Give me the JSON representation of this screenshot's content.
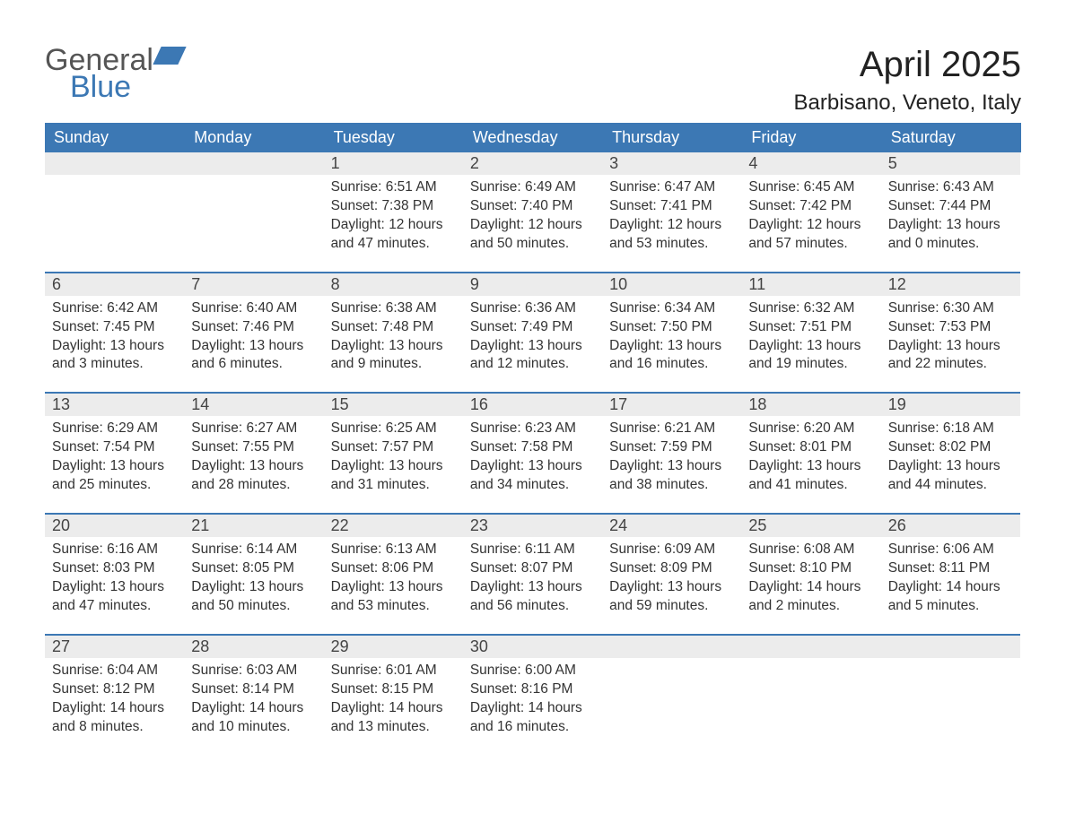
{
  "logo": {
    "word1": "General",
    "word2": "Blue"
  },
  "title": "April 2025",
  "location": "Barbisano, Veneto, Italy",
  "colors": {
    "header_bg": "#3c78b4",
    "header_text": "#ffffff",
    "daynum_bg": "#ececec",
    "week_divider": "#3c78b4",
    "body_text": "#333333",
    "page_bg": "#ffffff",
    "logo_gray": "#555555",
    "logo_blue": "#3c78b4"
  },
  "typography": {
    "title_fontsize": 40,
    "location_fontsize": 24,
    "header_fontsize": 18,
    "daynum_fontsize": 18,
    "body_fontsize": 15.5
  },
  "weekdays": [
    "Sunday",
    "Monday",
    "Tuesday",
    "Wednesday",
    "Thursday",
    "Friday",
    "Saturday"
  ],
  "weeks": [
    [
      null,
      null,
      {
        "day": "1",
        "sunrise": "6:51 AM",
        "sunset": "7:38 PM",
        "daylight": "12 hours and 47 minutes."
      },
      {
        "day": "2",
        "sunrise": "6:49 AM",
        "sunset": "7:40 PM",
        "daylight": "12 hours and 50 minutes."
      },
      {
        "day": "3",
        "sunrise": "6:47 AM",
        "sunset": "7:41 PM",
        "daylight": "12 hours and 53 minutes."
      },
      {
        "day": "4",
        "sunrise": "6:45 AM",
        "sunset": "7:42 PM",
        "daylight": "12 hours and 57 minutes."
      },
      {
        "day": "5",
        "sunrise": "6:43 AM",
        "sunset": "7:44 PM",
        "daylight": "13 hours and 0 minutes."
      }
    ],
    [
      {
        "day": "6",
        "sunrise": "6:42 AM",
        "sunset": "7:45 PM",
        "daylight": "13 hours and 3 minutes."
      },
      {
        "day": "7",
        "sunrise": "6:40 AM",
        "sunset": "7:46 PM",
        "daylight": "13 hours and 6 minutes."
      },
      {
        "day": "8",
        "sunrise": "6:38 AM",
        "sunset": "7:48 PM",
        "daylight": "13 hours and 9 minutes."
      },
      {
        "day": "9",
        "sunrise": "6:36 AM",
        "sunset": "7:49 PM",
        "daylight": "13 hours and 12 minutes."
      },
      {
        "day": "10",
        "sunrise": "6:34 AM",
        "sunset": "7:50 PM",
        "daylight": "13 hours and 16 minutes."
      },
      {
        "day": "11",
        "sunrise": "6:32 AM",
        "sunset": "7:51 PM",
        "daylight": "13 hours and 19 minutes."
      },
      {
        "day": "12",
        "sunrise": "6:30 AM",
        "sunset": "7:53 PM",
        "daylight": "13 hours and 22 minutes."
      }
    ],
    [
      {
        "day": "13",
        "sunrise": "6:29 AM",
        "sunset": "7:54 PM",
        "daylight": "13 hours and 25 minutes."
      },
      {
        "day": "14",
        "sunrise": "6:27 AM",
        "sunset": "7:55 PM",
        "daylight": "13 hours and 28 minutes."
      },
      {
        "day": "15",
        "sunrise": "6:25 AM",
        "sunset": "7:57 PM",
        "daylight": "13 hours and 31 minutes."
      },
      {
        "day": "16",
        "sunrise": "6:23 AM",
        "sunset": "7:58 PM",
        "daylight": "13 hours and 34 minutes."
      },
      {
        "day": "17",
        "sunrise": "6:21 AM",
        "sunset": "7:59 PM",
        "daylight": "13 hours and 38 minutes."
      },
      {
        "day": "18",
        "sunrise": "6:20 AM",
        "sunset": "8:01 PM",
        "daylight": "13 hours and 41 minutes."
      },
      {
        "day": "19",
        "sunrise": "6:18 AM",
        "sunset": "8:02 PM",
        "daylight": "13 hours and 44 minutes."
      }
    ],
    [
      {
        "day": "20",
        "sunrise": "6:16 AM",
        "sunset": "8:03 PM",
        "daylight": "13 hours and 47 minutes."
      },
      {
        "day": "21",
        "sunrise": "6:14 AM",
        "sunset": "8:05 PM",
        "daylight": "13 hours and 50 minutes."
      },
      {
        "day": "22",
        "sunrise": "6:13 AM",
        "sunset": "8:06 PM",
        "daylight": "13 hours and 53 minutes."
      },
      {
        "day": "23",
        "sunrise": "6:11 AM",
        "sunset": "8:07 PM",
        "daylight": "13 hours and 56 minutes."
      },
      {
        "day": "24",
        "sunrise": "6:09 AM",
        "sunset": "8:09 PM",
        "daylight": "13 hours and 59 minutes."
      },
      {
        "day": "25",
        "sunrise": "6:08 AM",
        "sunset": "8:10 PM",
        "daylight": "14 hours and 2 minutes."
      },
      {
        "day": "26",
        "sunrise": "6:06 AM",
        "sunset": "8:11 PM",
        "daylight": "14 hours and 5 minutes."
      }
    ],
    [
      {
        "day": "27",
        "sunrise": "6:04 AM",
        "sunset": "8:12 PM",
        "daylight": "14 hours and 8 minutes."
      },
      {
        "day": "28",
        "sunrise": "6:03 AM",
        "sunset": "8:14 PM",
        "daylight": "14 hours and 10 minutes."
      },
      {
        "day": "29",
        "sunrise": "6:01 AM",
        "sunset": "8:15 PM",
        "daylight": "14 hours and 13 minutes."
      },
      {
        "day": "30",
        "sunrise": "6:00 AM",
        "sunset": "8:16 PM",
        "daylight": "14 hours and 16 minutes."
      },
      null,
      null,
      null
    ]
  ],
  "labels": {
    "sunrise": "Sunrise: ",
    "sunset": "Sunset: ",
    "daylight": "Daylight: "
  }
}
